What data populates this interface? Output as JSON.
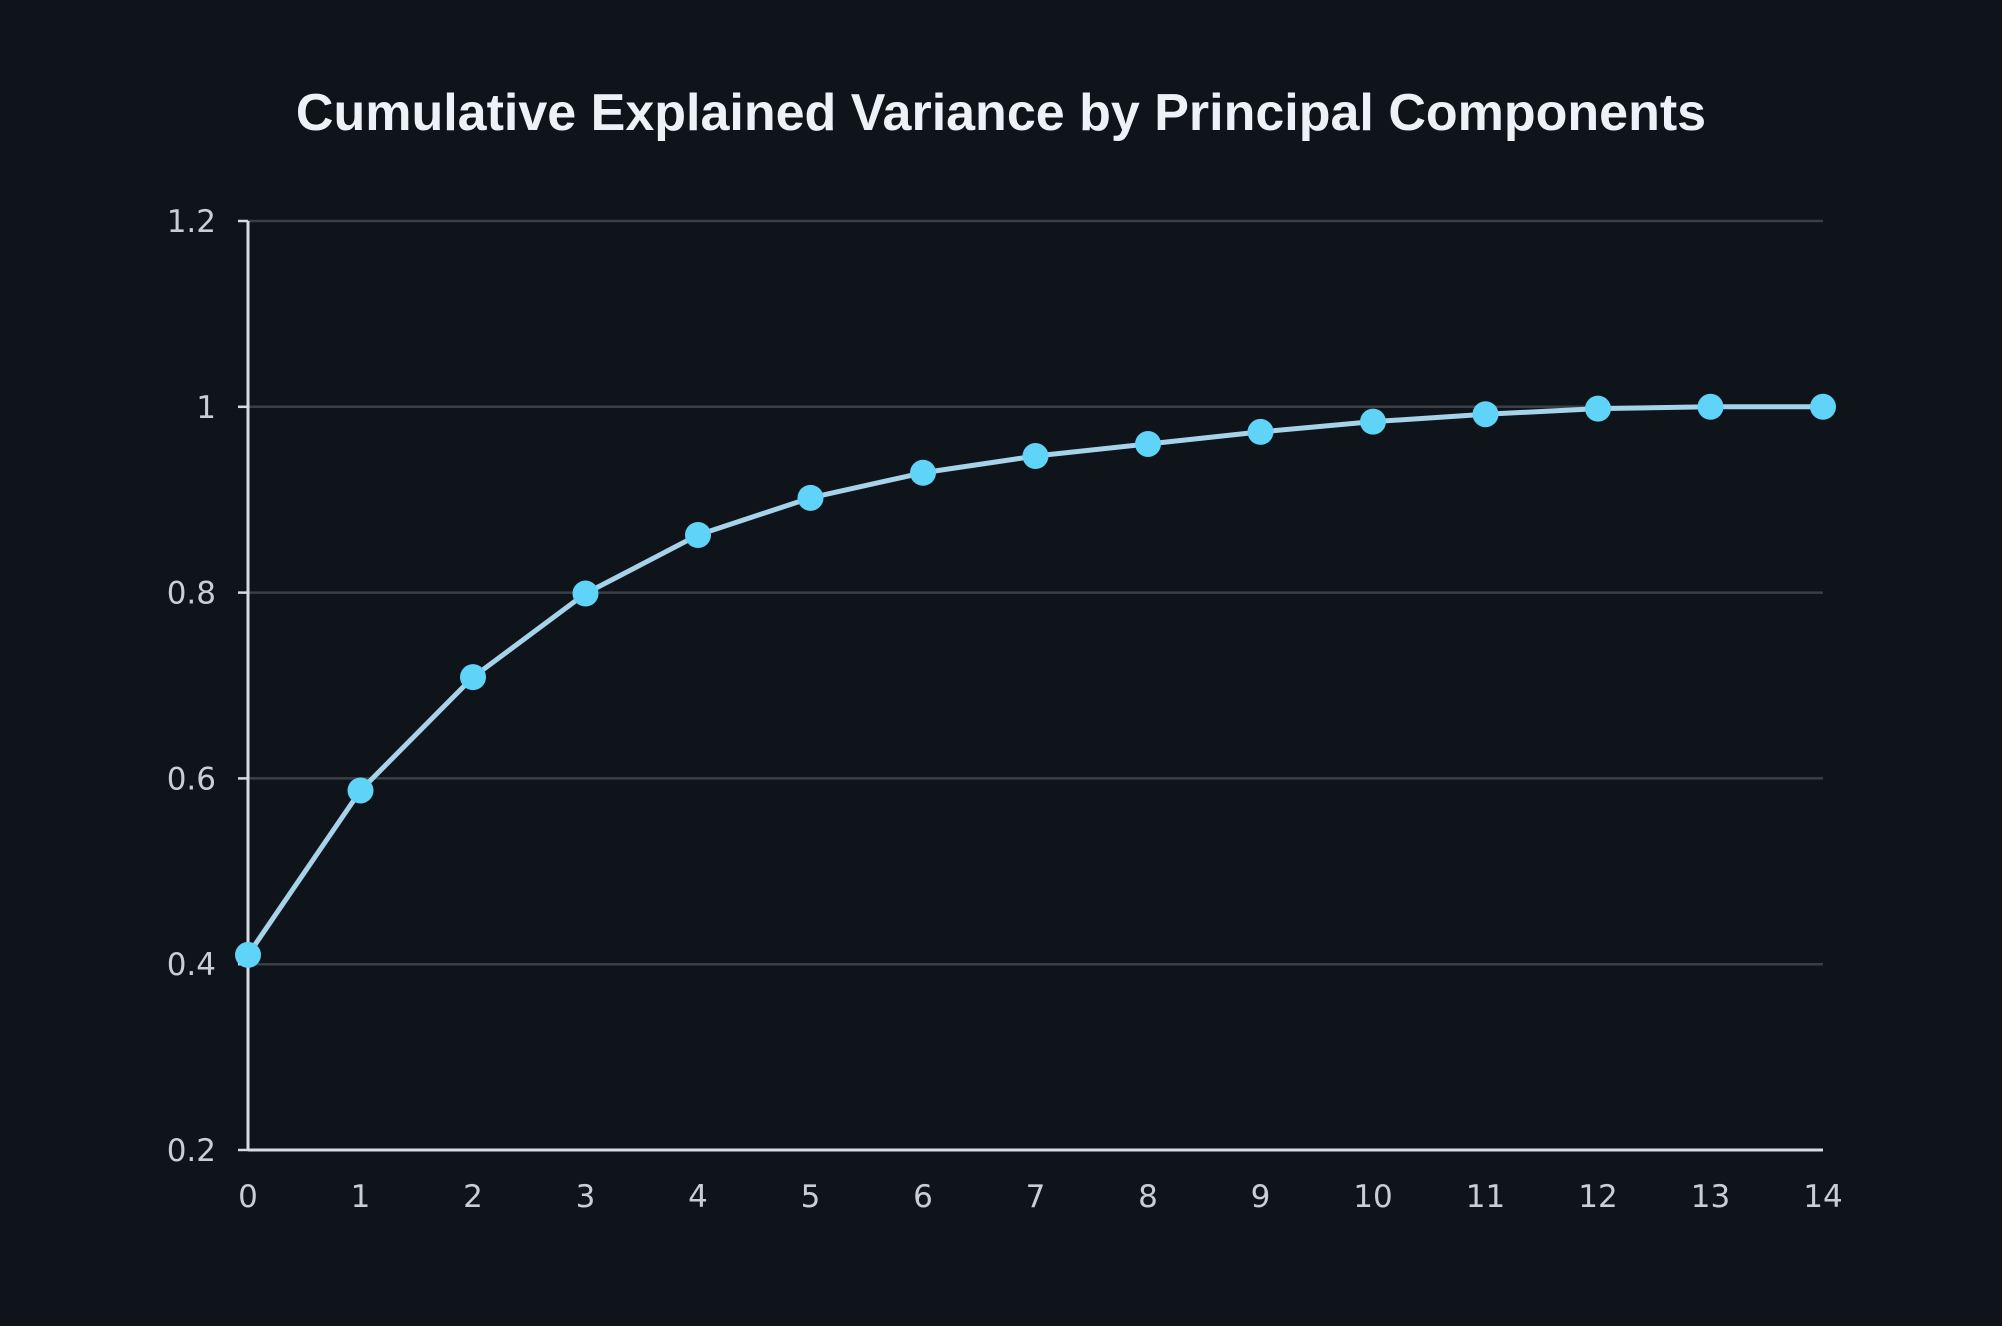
{
  "chart_data": {
    "type": "line",
    "title": "Cumulative Explained Variance by Principal Components",
    "xlabel": "",
    "ylabel": "",
    "x": [
      0,
      1,
      2,
      3,
      4,
      5,
      6,
      7,
      8,
      9,
      10,
      11,
      12,
      13,
      14
    ],
    "xticks": [
      "0",
      "1",
      "2",
      "3",
      "4",
      "5",
      "6",
      "7",
      "8",
      "9",
      "10",
      "11",
      "12",
      "13",
      "14"
    ],
    "yticks": [
      "0.2",
      "0.4",
      "0.6",
      "0.8",
      "1",
      "1.2"
    ],
    "ytick_values": [
      0.2,
      0.4,
      0.6,
      0.8,
      1.0,
      1.2
    ],
    "xlim": [
      0,
      14
    ],
    "ylim": [
      0.2,
      1.2
    ],
    "series": [
      {
        "values": [
          0.41,
          0.587,
          0.709,
          0.799,
          0.862,
          0.902,
          0.929,
          0.947,
          0.96,
          0.973,
          0.984,
          0.992,
          0.998,
          1.0,
          1.0
        ]
      }
    ],
    "grid": "horizontal",
    "colors": {
      "background": "#0f141a",
      "line": "#a6d3ea",
      "marker": "#5fd3f8",
      "grid": "#3a3f45",
      "axis": "#d7dbe0",
      "title": "#eef1f5",
      "tick": "#c9ced6"
    }
  }
}
